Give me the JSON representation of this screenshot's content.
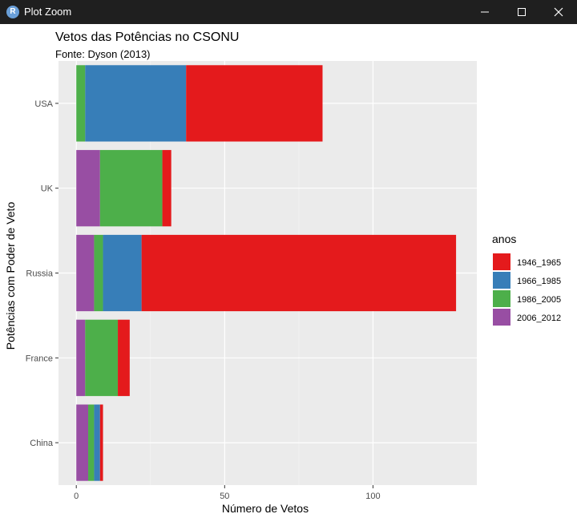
{
  "window": {
    "title": "Plot Zoom",
    "app_icon_letter": "R"
  },
  "chart_data": {
    "type": "bar",
    "orientation": "horizontal",
    "stacked": true,
    "title": "Vetos das Potências no CSONU",
    "subtitle": "Fonte: Dyson (2013)",
    "xlabel": "Número de Vetos",
    "ylabel": "Potências com Poder de Veto",
    "xlim": [
      -6,
      135
    ],
    "xticks": [
      0,
      50,
      100
    ],
    "categories": [
      "USA",
      "UK",
      "Russia",
      "France",
      "China"
    ],
    "series": [
      {
        "name": "2006_2012",
        "color": "#984EA3",
        "values": [
          0,
          8,
          6,
          3,
          4
        ]
      },
      {
        "name": "1986_2005",
        "color": "#4DAF4A",
        "values": [
          3,
          21,
          3,
          11,
          2
        ]
      },
      {
        "name": "1966_1985",
        "color": "#377EB8",
        "values": [
          34,
          0,
          13,
          0,
          2
        ]
      },
      {
        "name": "1946_1965",
        "color": "#E41A1C",
        "values": [
          46,
          3,
          106,
          4,
          1
        ]
      }
    ],
    "legend": {
      "title": "anos",
      "position": "right",
      "order": [
        "1946_1965",
        "1966_1985",
        "1986_2005",
        "2006_2012"
      ]
    },
    "grid": true,
    "panel_background": "#EBEBEB"
  }
}
